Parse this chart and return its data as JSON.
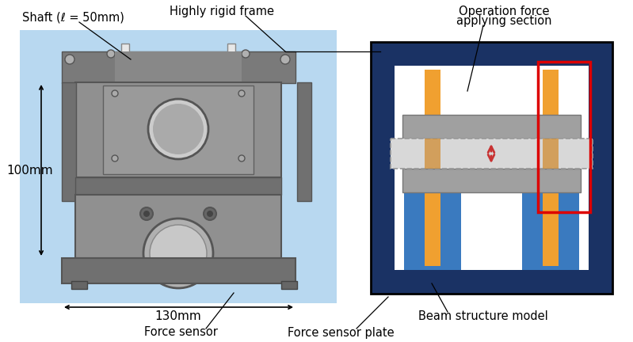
{
  "bg_color": "#ffffff",
  "photo_bg": "#b8d8f0",
  "labels": {
    "shaft": "Shaft (ℓ = 50mm)",
    "frame": "Highly rigid frame",
    "op_force_line1": "Operation force",
    "op_force_line2": "applying section",
    "force_sensor": "Force sensor",
    "force_sensor_plate": "Force sensor plate",
    "beam_model": "Beam structure model",
    "dim_100": "100mm",
    "dim_130": "130mm"
  },
  "diagram": {
    "outer_frame_color": "#1a3264",
    "inner_bg_color": "#ffffff",
    "blue_pillar_color": "#3a7abf",
    "orange_color": "#f0a030",
    "gray_plate_color": "#a0a0a0",
    "beam_color": "#d8d8d8",
    "arrow_color": "#c83232",
    "red_rect_color": "#dd0000"
  },
  "photo": {
    "main_body_color": "#909090",
    "dark_gray": "#707070",
    "mid_gray": "#888888",
    "light_gray": "#b0b0b0",
    "very_dark": "#555555",
    "top_frame_color": "#7a7a7a",
    "hole_color": "#cccccc"
  }
}
